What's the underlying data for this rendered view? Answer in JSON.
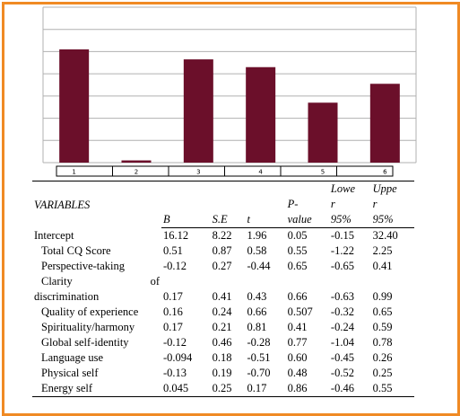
{
  "chart_data": {
    "type": "bar",
    "categories": [
      "1",
      "2",
      "3",
      "4",
      "5",
      "6"
    ],
    "values": [
      5.1,
      0.1,
      4.65,
      4.3,
      2.7,
      3.55
    ],
    "ylim": [
      0,
      7
    ],
    "grid": true,
    "bar_color": "#6b0f2a"
  },
  "table": {
    "header": {
      "variables": "VARIABLES",
      "b": "B",
      "se": "S.E",
      "t": "t",
      "p_top": "P-",
      "p_bottom": "value",
      "lower_1": "Lowe",
      "lower_2": "r",
      "lower_3": "95%",
      "upper_1": "Uppe",
      "upper_2": "r",
      "upper_3": "95%"
    },
    "rows": [
      {
        "name": "Intercept",
        "b": "16.12",
        "se": "8.22",
        "t": "1.96",
        "p": "0.05",
        "lower": "-0.15",
        "upper": "32.40"
      },
      {
        "name": "Total CQ Score",
        "b": "0.51",
        "se": "0.87",
        "t": "0.58",
        "p": "0.55",
        "lower": "-1.22",
        "upper": "2.25"
      },
      {
        "name": "Perspective-taking",
        "b": "-0.12",
        "se": "0.27",
        "t": "-0.44",
        "p": "0.65",
        "lower": "-0.65",
        "upper": "0.41"
      },
      {
        "name": "Clarity of discrimination",
        "name_a": "Clarity",
        "name_b": "of",
        "name_c": "discrimination",
        "b": "0.17",
        "se": "0.41",
        "t": "0.43",
        "p": "0.66",
        "lower": "-0.63",
        "upper": "0.99"
      },
      {
        "name": "Quality of experience",
        "b": "0.16",
        "se": "0.24",
        "t": "0.66",
        "p": "0.507",
        "lower": "-0.32",
        "upper": "0.65"
      },
      {
        "name": "Spirituality/harmony",
        "b": "0.17",
        "se": "0.21",
        "t": "0.81",
        "p": "0.41",
        "lower": "-0.24",
        "upper": "0.59"
      },
      {
        "name": "Global self-identity",
        "b": "-0.12",
        "se": "0.46",
        "t": "-0.28",
        "p": "0.77",
        "lower": "-1.04",
        "upper": "0.78"
      },
      {
        "name": "Language use",
        "b": "-0.094",
        "se": "0.18",
        "t": "-0.51",
        "p": "0.60",
        "lower": "-0.45",
        "upper": "0.26"
      },
      {
        "name": "Physical self",
        "b": "-0.13",
        "se": "0.19",
        "t": "-0.70",
        "p": "0.48",
        "lower": "-0.52",
        "upper": "0.25"
      },
      {
        "name": "Energy self",
        "b": "0.045",
        "se": "0.25",
        "t": "0.17",
        "p": "0.86",
        "lower": "-0.46",
        "upper": "0.55"
      }
    ]
  },
  "colors": {
    "frame": "#f08a24",
    "bar": "#6b0f2a",
    "grid": "#b0b0b0"
  }
}
